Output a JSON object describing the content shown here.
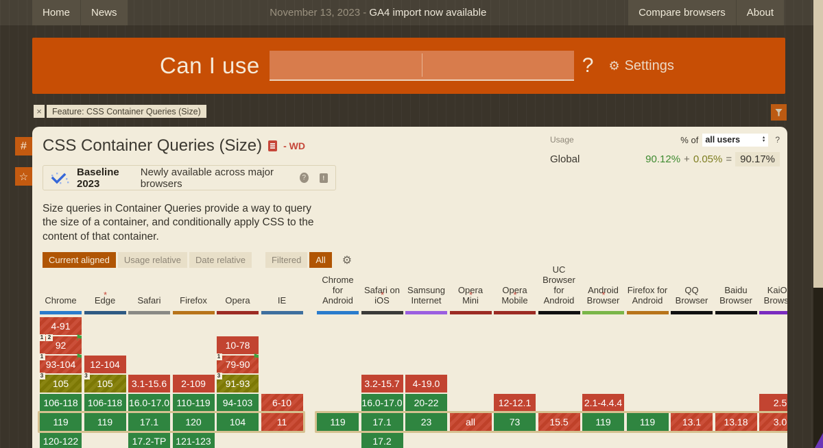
{
  "nav": {
    "left": [
      {
        "label": "Home"
      },
      {
        "label": "News"
      }
    ],
    "notice": {
      "date": "November 13, 2023 - ",
      "message": "GA4 import now available"
    },
    "right": [
      {
        "label": "Compare browsers"
      },
      {
        "label": "About"
      }
    ]
  },
  "header": {
    "brand": "Can I use",
    "search_value": "",
    "search_placeholder": "",
    "question_mark": "?",
    "gear_icon": "⚙",
    "settings_label": "Settings"
  },
  "feature_tag": {
    "close_icon": "×",
    "label": "Feature: CSS Container Queries (Size)"
  },
  "side_buttons": {
    "hash_icon": "#",
    "star_icon": "☆"
  },
  "main": {
    "title": "CSS Container Queries (Size)",
    "spec_status": "- WD",
    "usage": {
      "label": "Usage",
      "percent_of": "% of",
      "select_value": "all users",
      "stepper_up": "▲",
      "stepper_down": "▼",
      "help": "?",
      "region": "Global",
      "value_main": "90.12%",
      "plus": "+",
      "value_partial": "0.05%",
      "equals": "=",
      "value_total": "90.17%"
    },
    "baseline": {
      "title": "Baseline 2023",
      "subtitle": "Newly available across major browsers",
      "help_icon": "?",
      "report_icon": "!"
    },
    "description": "Size queries in Container Queries provide a way to query the size of a container, and conditionally apply CSS to the content of that container.",
    "view_toggles": [
      {
        "label": "Current aligned",
        "active": true
      },
      {
        "label": "Usage relative",
        "active": false
      },
      {
        "label": "Date relative",
        "active": false
      }
    ],
    "filter_toggles": [
      {
        "label": "Filtered",
        "active": false
      },
      {
        "label": "All",
        "active": true
      }
    ],
    "gear_icon": "⚙"
  },
  "colors": {
    "brand_orange": "#c74e05",
    "supported_green": "#2f8540",
    "unsupported_red": "#c24431",
    "partial_olive": "#7c7805",
    "current_row_highlight": "#d5c190"
  },
  "flag_icon": "⚑",
  "table": {
    "rows": 7,
    "current_row": 6,
    "groups": [
      {
        "columns": [
          {
            "name": "Chrome",
            "starred": false,
            "underline": "#2a7ccc",
            "cells": [
              {
                "row": 1,
                "text": "4-91",
                "type": "red-striped"
              },
              {
                "row": 2,
                "text": "92",
                "type": "red-striped",
                "badges": [
                  "1",
                  "2"
                ],
                "flag": true
              },
              {
                "row": 3,
                "text": "93-104",
                "type": "red-striped",
                "badges": [
                  "1"
                ],
                "flag": true
              },
              {
                "row": 4,
                "text": "105",
                "type": "olive-striped",
                "badges": [
                  "3"
                ]
              },
              {
                "row": 5,
                "text": "106-118",
                "type": "green"
              },
              {
                "row": 6,
                "text": "119",
                "type": "green"
              },
              {
                "row": 7,
                "text": "120-122",
                "type": "green"
              }
            ]
          },
          {
            "name": "Edge",
            "starred": true,
            "underline": "#2f5a83",
            "cells": [
              {
                "row": 3,
                "text": "12-104",
                "type": "red"
              },
              {
                "row": 4,
                "text": "105",
                "type": "olive-striped",
                "badges": [
                  "3"
                ]
              },
              {
                "row": 5,
                "text": "106-118",
                "type": "green"
              },
              {
                "row": 6,
                "text": "119",
                "type": "green"
              }
            ]
          },
          {
            "name": "Safari",
            "starred": false,
            "underline": "#8a8a85",
            "cells": [
              {
                "row": 4,
                "text": "3.1-15.6",
                "type": "red"
              },
              {
                "row": 5,
                "text": "16.0-17.0",
                "type": "green"
              },
              {
                "row": 6,
                "text": "17.1",
                "type": "green"
              },
              {
                "row": 7,
                "text": "17.2-TP",
                "type": "green"
              }
            ]
          },
          {
            "name": "Firefox",
            "starred": false,
            "underline": "#b8741a",
            "cells": [
              {
                "row": 4,
                "text": "2-109",
                "type": "red"
              },
              {
                "row": 5,
                "text": "110-119",
                "type": "green"
              },
              {
                "row": 6,
                "text": "120",
                "type": "green"
              },
              {
                "row": 7,
                "text": "121-123",
                "type": "green"
              }
            ]
          },
          {
            "name": "Opera",
            "starred": false,
            "underline": "#9c2b23",
            "cells": [
              {
                "row": 2,
                "text": "10-78",
                "type": "red"
              },
              {
                "row": 3,
                "text": "79-90",
                "type": "red-striped",
                "badges": [
                  "1"
                ],
                "flag": true
              },
              {
                "row": 4,
                "text": "91-93",
                "type": "olive-striped",
                "badges": [
                  "3"
                ]
              },
              {
                "row": 5,
                "text": "94-103",
                "type": "green"
              },
              {
                "row": 6,
                "text": "104",
                "type": "green"
              }
            ]
          },
          {
            "name": "IE",
            "starred": false,
            "underline": "#3e6f9e",
            "cells": [
              {
                "row": 5,
                "text": "6-10",
                "type": "red-striped"
              },
              {
                "row": 6,
                "text": "11",
                "type": "red-striped"
              }
            ]
          }
        ]
      },
      {
        "columns": [
          {
            "name": "Chrome for Android",
            "starred": false,
            "underline": "#2a7ccc",
            "cells": [
              {
                "row": 6,
                "text": "119",
                "type": "green"
              }
            ]
          },
          {
            "name": "Safari on iOS",
            "starred": true,
            "underline": "#3a3a38",
            "cells": [
              {
                "row": 4,
                "text": "3.2-15.7",
                "type": "red"
              },
              {
                "row": 5,
                "text": "16.0-17.0",
                "type": "green"
              },
              {
                "row": 6,
                "text": "17.1",
                "type": "green"
              },
              {
                "row": 7,
                "text": "17.2",
                "type": "green"
              }
            ]
          },
          {
            "name": "Samsung Internet",
            "starred": false,
            "underline": "#9b5fe0",
            "cells": [
              {
                "row": 4,
                "text": "4-19.0",
                "type": "red"
              },
              {
                "row": 5,
                "text": "20-22",
                "type": "green"
              },
              {
                "row": 6,
                "text": "23",
                "type": "green"
              }
            ]
          },
          {
            "name": "Opera Mini",
            "starred": true,
            "underline": "#9c2b23",
            "cells": [
              {
                "row": 6,
                "text": "all",
                "type": "red-striped"
              }
            ]
          },
          {
            "name": "Opera Mobile",
            "starred": true,
            "underline": "#9c2b23",
            "cells": [
              {
                "row": 5,
                "text": "12-12.1",
                "type": "red"
              },
              {
                "row": 6,
                "text": "73",
                "type": "green"
              }
            ]
          },
          {
            "name": "UC Browser for Android",
            "starred": false,
            "underline": "#111111",
            "cells": [
              {
                "row": 6,
                "text": "15.5",
                "type": "red-striped"
              }
            ]
          },
          {
            "name": "Android Browser",
            "starred": true,
            "underline": "#7ab648",
            "cells": [
              {
                "row": 5,
                "text": "2.1-4.4.4",
                "type": "red"
              },
              {
                "row": 6,
                "text": "119",
                "type": "green"
              }
            ]
          },
          {
            "name": "Firefox for Android",
            "starred": false,
            "underline": "#b8741a",
            "cells": [
              {
                "row": 6,
                "text": "119",
                "type": "green"
              }
            ]
          },
          {
            "name": "QQ Browser",
            "starred": false,
            "underline": "#111111",
            "cells": [
              {
                "row": 6,
                "text": "13.1",
                "type": "red-striped"
              }
            ]
          },
          {
            "name": "Baidu Browser",
            "starred": false,
            "underline": "#111111",
            "cells": [
              {
                "row": 6,
                "text": "13.18",
                "type": "red-striped"
              }
            ]
          },
          {
            "name": "KaiOS Browser",
            "starred": false,
            "underline": "#7a2bbf",
            "cells": [
              {
                "row": 5,
                "text": "2.5",
                "type": "red"
              },
              {
                "row": 6,
                "text": "3.0",
                "type": "red-striped"
              }
            ]
          }
        ]
      }
    ]
  }
}
